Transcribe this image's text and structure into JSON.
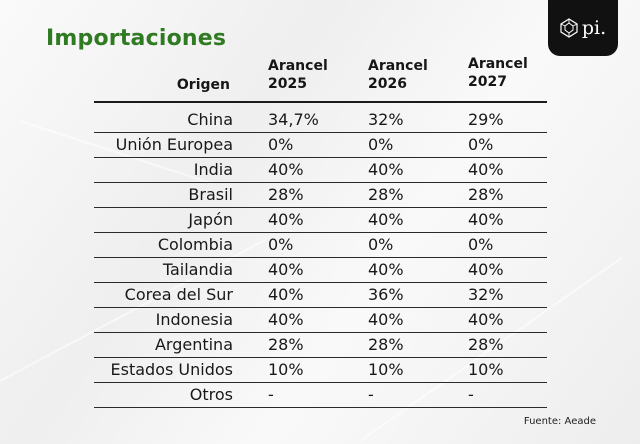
{
  "title": "Importaciones",
  "logo": {
    "text": "pi.",
    "icon": "gem-icon"
  },
  "table": {
    "headers": {
      "origin": "Origen",
      "c1": [
        "Arancel",
        "2025"
      ],
      "c2": [
        "Arancel",
        "2026"
      ],
      "c3": [
        "Arancel",
        "2027"
      ]
    },
    "rows": [
      {
        "country": "China",
        "y2025": "34,7%",
        "y2026": "32%",
        "y2027": "29%"
      },
      {
        "country": "Unión Europea",
        "y2025": "0%",
        "y2026": "0%",
        "y2027": "0%"
      },
      {
        "country": "India",
        "y2025": "40%",
        "y2026": "40%",
        "y2027": "40%"
      },
      {
        "country": "Brasil",
        "y2025": "28%",
        "y2026": "28%",
        "y2027": "28%"
      },
      {
        "country": "Japón",
        "y2025": "40%",
        "y2026": "40%",
        "y2027": "40%"
      },
      {
        "country": "Colombia",
        "y2025": "0%",
        "y2026": "0%",
        "y2027": "0%"
      },
      {
        "country": "Tailandia",
        "y2025": "40%",
        "y2026": "40%",
        "y2027": "40%"
      },
      {
        "country": "Corea del Sur",
        "y2025": "40%",
        "y2026": "36%",
        "y2027": "32%"
      },
      {
        "country": "Indonesia",
        "y2025": "40%",
        "y2026": "40%",
        "y2027": "40%"
      },
      {
        "country": "Argentina",
        "y2025": "28%",
        "y2026": "28%",
        "y2027": "28%"
      },
      {
        "country": "Estados Unidos",
        "y2025": "10%",
        "y2026": "10%",
        "y2027": "10%"
      },
      {
        "country": "Otros",
        "y2025": "-",
        "y2026": "-",
        "y2027": "-"
      }
    ]
  },
  "source": "Fuente: Aeade",
  "colors": {
    "title": "#2f7a22",
    "logo_bg": "#111111"
  }
}
